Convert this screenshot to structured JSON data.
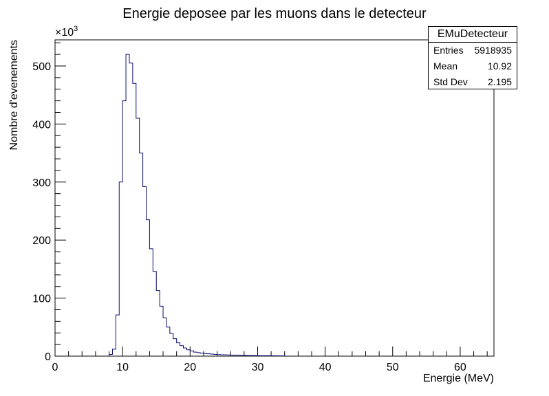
{
  "chart_data": {
    "type": "histogram",
    "title": "Energie deposee par les muons dans le detecteur",
    "xlabel": "Energie (MeV)",
    "ylabel": "Nombre d'evenements",
    "y_scale_label": "×10",
    "y_scale_exponent": "3",
    "xlim": [
      0,
      65
    ],
    "ylim": [
      0,
      545
    ],
    "x_ticks": [
      0,
      10,
      20,
      30,
      40,
      50,
      60
    ],
    "y_ticks": [
      0,
      100,
      200,
      300,
      400,
      500
    ],
    "bin_width": 0.5,
    "bin_start": 8.0,
    "bin_values": [
      3,
      12,
      71,
      300,
      440,
      520,
      505,
      470,
      410,
      350,
      292,
      235,
      185,
      146,
      113,
      86,
      66,
      50,
      39,
      30,
      23,
      18,
      14,
      11,
      9,
      7,
      6,
      5,
      4.5,
      4,
      3.5,
      3,
      2.7,
      2.4,
      2.2,
      2,
      1.8,
      1.6,
      1.5,
      1.3,
      1.2,
      1.1,
      1,
      0.9,
      0.8,
      0.8,
      0.7,
      0.7,
      0.6,
      0.6,
      0.5,
      0.5
    ],
    "line_color": "#0a0a6e",
    "grid": false,
    "legend_position": "top-right"
  },
  "stats": {
    "title": "EMuDetecteur",
    "rows": [
      {
        "label": "Entries",
        "value": "5918935"
      },
      {
        "label": "Mean",
        "value": "10.92"
      },
      {
        "label": "Std Dev",
        "value": "2.195"
      }
    ]
  }
}
